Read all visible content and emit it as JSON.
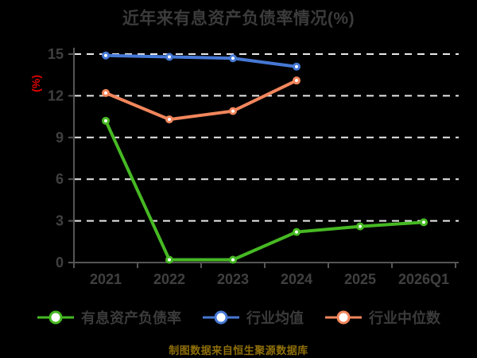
{
  "caption": "制图数据来自恒生聚源数据库",
  "colors": {
    "background": "#000000",
    "title_text": "#3b3b3b",
    "tick_label": "#404040",
    "axis": "#555555",
    "gridline": "#e8e8e8",
    "ylabel_text": "#dd0000",
    "caption_text": "#8f6f08",
    "legend_text": "#3b3b3b",
    "marker_fill": "#ffffff"
  },
  "chart_data": {
    "type": "line",
    "title": "近年来有息资产负债率情况(%)",
    "xlabel": "",
    "ylabel": "(%)",
    "categories": [
      "2021",
      "2022",
      "2023",
      "2024",
      "2025",
      "2026Q1"
    ],
    "y_ticks": [
      0,
      3,
      6,
      9,
      12,
      15
    ],
    "ylim": [
      0,
      15
    ],
    "grid": "horizontal-dashed",
    "legend_position": "bottom",
    "series": [
      {
        "name": "有息资产负债率",
        "color": "#46b923",
        "values": [
          10.2,
          0.2,
          0.2,
          2.2,
          2.6,
          2.9
        ]
      },
      {
        "name": "行业均值",
        "color": "#4678d4",
        "values": [
          14.9,
          14.8,
          14.7,
          14.1
        ]
      },
      {
        "name": "行业中位数",
        "color": "#f2865c",
        "values": [
          12.2,
          10.3,
          10.9,
          13.1
        ]
      }
    ]
  }
}
